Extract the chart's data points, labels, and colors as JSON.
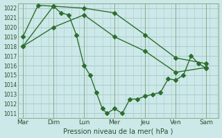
{
  "xlabel": "Pression niveau de la mer( hPa )",
  "background_color": "#cce8e8",
  "grid_color": "#aacccc",
  "line_color": "#2d6e2d",
  "ylim": [
    1010.5,
    1022.5
  ],
  "yticks": [
    1011,
    1012,
    1013,
    1014,
    1015,
    1016,
    1017,
    1018,
    1019,
    1020,
    1021,
    1022
  ],
  "day_labels": [
    "Mar",
    "Dim",
    "Lun",
    "Mer",
    "Jeu",
    "Ven",
    "Sam"
  ],
  "day_positions": [
    0,
    1,
    2,
    3,
    4,
    5,
    6
  ],
  "line1_x": [
    0,
    1,
    2,
    3,
    4,
    5,
    6
  ],
  "line1_y": [
    1018.0,
    1022.2,
    1022.0,
    1021.5,
    1019.2,
    1016.8,
    1016.2
  ],
  "line2_x": [
    0,
    1,
    2,
    3,
    4,
    5,
    6
  ],
  "line2_y": [
    1018.0,
    1020.0,
    1021.3,
    1019.0,
    1017.5,
    1015.3,
    1015.8
  ],
  "line3_x": [
    0.0,
    0.5,
    1.0,
    1.25,
    1.5,
    1.75,
    2.0,
    2.2,
    2.4,
    2.6,
    2.75,
    3.0,
    3.25,
    3.5,
    3.75,
    4.0,
    4.25,
    4.5,
    4.75,
    5.0,
    5.25,
    5.5,
    5.75,
    6.0
  ],
  "line3_y": [
    1019.0,
    1022.3,
    1022.2,
    1021.5,
    1021.3,
    1019.2,
    1016.0,
    1015.0,
    1013.2,
    1011.5,
    1011.0,
    1011.5,
    1011.0,
    1012.5,
    1012.5,
    1012.8,
    1013.0,
    1013.2,
    1014.6,
    1014.5,
    1015.0,
    1017.0,
    1016.2,
    1015.7
  ]
}
